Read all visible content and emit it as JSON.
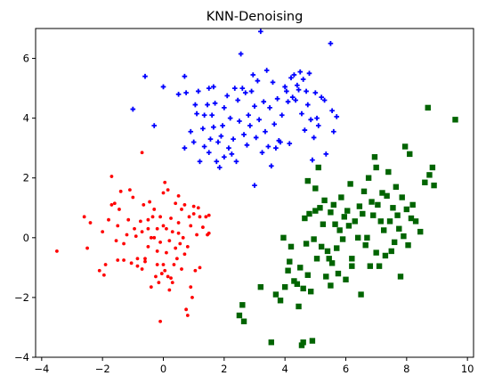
{
  "chart_data": {
    "type": "scatter",
    "title": "KNN-Denoising",
    "xlabel": "",
    "ylabel": "",
    "xlim": [
      -4.2,
      10.2
    ],
    "ylim": [
      -4,
      7
    ],
    "xticks": [
      -4,
      -2,
      0,
      2,
      4,
      6,
      8,
      10
    ],
    "yticks": [
      -4,
      -2,
      0,
      2,
      4,
      6
    ],
    "grid": false,
    "legend": "none",
    "series": [
      {
        "marker": "dot",
        "color": "#ff0000",
        "points": [
          [
            -3.5,
            -0.45
          ],
          [
            -2.6,
            0.7
          ],
          [
            -2.5,
            -0.35
          ],
          [
            -2.4,
            0.5
          ],
          [
            -2.1,
            -1.1
          ],
          [
            -2.0,
            0.2
          ],
          [
            -1.95,
            -1.25
          ],
          [
            -1.9,
            -0.9
          ],
          [
            -1.8,
            0.6
          ],
          [
            -1.7,
            2.05
          ],
          [
            -1.7,
            1.1
          ],
          [
            -1.6,
            1.15
          ],
          [
            -1.55,
            -0.1
          ],
          [
            -1.5,
            0.4
          ],
          [
            -1.5,
            -0.75
          ],
          [
            -1.45,
            0.95
          ],
          [
            -1.4,
            1.55
          ],
          [
            -1.3,
            -0.75
          ],
          [
            -1.3,
            -0.2
          ],
          [
            -1.2,
            0.1
          ],
          [
            -1.15,
            0.6
          ],
          [
            -1.1,
            1.6
          ],
          [
            -1.05,
            -0.85
          ],
          [
            -1.0,
            1.35
          ],
          [
            -0.95,
            0.3
          ],
          [
            -0.9,
            0.05
          ],
          [
            -0.85,
            -0.7
          ],
          [
            -0.85,
            -0.95
          ],
          [
            -0.75,
            0.55
          ],
          [
            -0.7,
            0.2
          ],
          [
            -0.7,
            -1.05
          ],
          [
            -0.65,
            1.1
          ],
          [
            -0.6,
            -0.8
          ],
          [
            -0.6,
            -0.7
          ],
          [
            -0.5,
            0.3
          ],
          [
            -0.5,
            -0.3
          ],
          [
            -0.45,
            1.2
          ],
          [
            -0.4,
            -1.65
          ],
          [
            -0.4,
            0.0
          ],
          [
            -0.35,
            0.7
          ],
          [
            -0.3,
            0.95
          ],
          [
            -0.3,
            0.0
          ],
          [
            -0.25,
            -1.3
          ],
          [
            -0.2,
            0.3
          ],
          [
            -0.2,
            -0.45
          ],
          [
            -0.2,
            -0.9
          ],
          [
            -0.15,
            -1.5
          ],
          [
            -0.1,
            0.7
          ],
          [
            -0.1,
            -0.15
          ],
          [
            -0.1,
            -2.8
          ],
          [
            -0.05,
            -1.2
          ],
          [
            0.0,
            0.4
          ],
          [
            0.0,
            -0.9
          ],
          [
            0.05,
            1.85
          ],
          [
            0.05,
            -1.1
          ],
          [
            0.1,
            0.3
          ],
          [
            0.1,
            -0.5
          ],
          [
            0.15,
            1.6
          ],
          [
            0.15,
            -1.3
          ],
          [
            0.2,
            -0.1
          ],
          [
            0.2,
            -1.75
          ],
          [
            0.25,
            0.65
          ],
          [
            0.25,
            -1.35
          ],
          [
            0.3,
            0.2
          ],
          [
            0.3,
            -1.5
          ],
          [
            0.35,
            -0.9
          ],
          [
            0.4,
            1.15
          ],
          [
            0.4,
            -0.35
          ],
          [
            0.45,
            -0.7
          ],
          [
            0.5,
            0.5
          ],
          [
            0.5,
            1.4
          ],
          [
            0.5,
            0.15
          ],
          [
            0.55,
            -0.2
          ],
          [
            0.6,
            0.95
          ],
          [
            0.6,
            -1.05
          ],
          [
            0.65,
            0.0
          ],
          [
            0.7,
            1.1
          ],
          [
            0.7,
            -0.55
          ],
          [
            0.75,
            -2.4
          ],
          [
            0.8,
            -0.3
          ],
          [
            0.8,
            -2.6
          ],
          [
            0.85,
            0.7
          ],
          [
            0.9,
            0.4
          ],
          [
            0.9,
            -1.65
          ],
          [
            0.95,
            -2.0
          ],
          [
            1.0,
            0.8
          ],
          [
            1.0,
            1.05
          ],
          [
            1.05,
            -1.1
          ],
          [
            1.1,
            0.1
          ],
          [
            1.15,
            1.0
          ],
          [
            1.2,
            0.7
          ],
          [
            1.2,
            -1.0
          ],
          [
            1.3,
            0.35
          ],
          [
            1.4,
            0.7
          ],
          [
            1.45,
            0.1
          ],
          [
            1.5,
            0.15
          ],
          [
            1.5,
            0.75
          ],
          [
            -0.7,
            2.85
          ],
          [
            -0.5,
            0.6
          ],
          [
            0.0,
            1.5
          ]
        ]
      },
      {
        "marker": "plus",
        "color": "#0000ff",
        "points": [
          [
            -1.0,
            4.3
          ],
          [
            -0.6,
            5.4
          ],
          [
            -0.3,
            3.75
          ],
          [
            0.0,
            5.05
          ],
          [
            0.5,
            4.8
          ],
          [
            0.7,
            5.4
          ],
          [
            0.7,
            3.0
          ],
          [
            0.75,
            4.85
          ],
          [
            0.9,
            3.55
          ],
          [
            1.0,
            3.2
          ],
          [
            1.05,
            4.45
          ],
          [
            1.1,
            4.15
          ],
          [
            1.15,
            4.9
          ],
          [
            1.2,
            2.55
          ],
          [
            1.3,
            3.65
          ],
          [
            1.35,
            3.05
          ],
          [
            1.35,
            4.1
          ],
          [
            1.45,
            4.45
          ],
          [
            1.5,
            2.85
          ],
          [
            1.5,
            5.0
          ],
          [
            1.55,
            3.3
          ],
          [
            1.6,
            4.1
          ],
          [
            1.65,
            3.7
          ],
          [
            1.65,
            5.05
          ],
          [
            1.7,
            4.5
          ],
          [
            1.75,
            2.55
          ],
          [
            1.8,
            3.2
          ],
          [
            1.85,
            2.35
          ],
          [
            1.9,
            3.4
          ],
          [
            1.95,
            3.75
          ],
          [
            2.0,
            4.35
          ],
          [
            2.0,
            2.7
          ],
          [
            2.1,
            4.75
          ],
          [
            2.15,
            3.0
          ],
          [
            2.2,
            4.0
          ],
          [
            2.25,
            2.8
          ],
          [
            2.3,
            3.3
          ],
          [
            2.35,
            5.0
          ],
          [
            2.4,
            2.55
          ],
          [
            2.45,
            4.6
          ],
          [
            2.5,
            3.9
          ],
          [
            2.55,
            6.15
          ],
          [
            2.6,
            5.0
          ],
          [
            2.65,
            3.45
          ],
          [
            2.7,
            4.85
          ],
          [
            2.75,
            3.1
          ],
          [
            2.8,
            4.1
          ],
          [
            2.85,
            3.75
          ],
          [
            2.9,
            4.9
          ],
          [
            2.95,
            5.45
          ],
          [
            3.0,
            1.75
          ],
          [
            3.0,
            4.4
          ],
          [
            3.05,
            3.35
          ],
          [
            3.1,
            5.25
          ],
          [
            3.15,
            3.95
          ],
          [
            3.2,
            6.9
          ],
          [
            3.25,
            2.85
          ],
          [
            3.3,
            4.55
          ],
          [
            3.35,
            3.55
          ],
          [
            3.4,
            5.6
          ],
          [
            3.45,
            3.05
          ],
          [
            3.5,
            4.35
          ],
          [
            3.55,
            2.4
          ],
          [
            3.6,
            5.2
          ],
          [
            3.65,
            3.8
          ],
          [
            3.7,
            3.0
          ],
          [
            3.75,
            4.65
          ],
          [
            3.8,
            3.25
          ],
          [
            3.85,
            3.2
          ],
          [
            3.9,
            4.1
          ],
          [
            4.0,
            5.05
          ],
          [
            4.05,
            4.9
          ],
          [
            4.1,
            4.55
          ],
          [
            4.15,
            3.15
          ],
          [
            4.2,
            5.35
          ],
          [
            4.25,
            4.7
          ],
          [
            4.3,
            5.45
          ],
          [
            4.35,
            4.6
          ],
          [
            4.4,
            5.1
          ],
          [
            4.45,
            4.95
          ],
          [
            4.5,
            5.55
          ],
          [
            4.55,
            4.15
          ],
          [
            4.6,
            5.3
          ],
          [
            4.65,
            3.6
          ],
          [
            4.7,
            4.9
          ],
          [
            4.75,
            4.45
          ],
          [
            4.8,
            5.5
          ],
          [
            4.85,
            3.95
          ],
          [
            4.9,
            2.6
          ],
          [
            4.95,
            3.35
          ],
          [
            5.0,
            4.85
          ],
          [
            5.05,
            4.0
          ],
          [
            5.1,
            3.75
          ],
          [
            5.2,
            4.7
          ],
          [
            5.3,
            4.6
          ],
          [
            5.35,
            2.8
          ],
          [
            5.5,
            6.5
          ],
          [
            5.55,
            4.25
          ],
          [
            5.6,
            3.55
          ],
          [
            5.7,
            4.05
          ]
        ]
      },
      {
        "marker": "square",
        "color": "#006400",
        "points": [
          [
            2.5,
            -2.6
          ],
          [
            2.6,
            -2.25
          ],
          [
            2.65,
            -2.8
          ],
          [
            3.2,
            -1.65
          ],
          [
            3.55,
            -3.5
          ],
          [
            3.7,
            -1.9
          ],
          [
            3.85,
            -2.1
          ],
          [
            3.95,
            0.0
          ],
          [
            4.0,
            -1.65
          ],
          [
            4.1,
            -1.1
          ],
          [
            4.15,
            -0.8
          ],
          [
            4.2,
            -0.3
          ],
          [
            4.3,
            -1.45
          ],
          [
            4.4,
            -1.55
          ],
          [
            4.45,
            -2.3
          ],
          [
            4.5,
            -1.0
          ],
          [
            4.55,
            -3.6
          ],
          [
            4.6,
            -1.7
          ],
          [
            4.6,
            -3.5
          ],
          [
            4.65,
            0.65
          ],
          [
            4.7,
            -0.2
          ],
          [
            4.75,
            1.9
          ],
          [
            4.75,
            -1.25
          ],
          [
            4.8,
            0.8
          ],
          [
            4.85,
            -1.8
          ],
          [
            4.9,
            -3.45
          ],
          [
            4.95,
            -0.05
          ],
          [
            5.0,
            0.9
          ],
          [
            5.0,
            1.65
          ],
          [
            5.05,
            -0.7
          ],
          [
            5.1,
            2.35
          ],
          [
            5.15,
            1.0
          ],
          [
            5.2,
            -0.3
          ],
          [
            5.25,
            0.45
          ],
          [
            5.3,
            1.25
          ],
          [
            5.35,
            -1.3
          ],
          [
            5.4,
            -0.45
          ],
          [
            5.45,
            -0.7
          ],
          [
            5.5,
            0.85
          ],
          [
            5.5,
            -1.6
          ],
          [
            5.55,
            -0.85
          ],
          [
            5.6,
            1.1
          ],
          [
            5.65,
            0.45
          ],
          [
            5.7,
            -0.35
          ],
          [
            5.75,
            -1.2
          ],
          [
            5.8,
            0.25
          ],
          [
            5.85,
            1.35
          ],
          [
            5.9,
            -0.05
          ],
          [
            5.95,
            0.7
          ],
          [
            6.0,
            -1.4
          ],
          [
            6.05,
            0.9
          ],
          [
            6.1,
            0.4
          ],
          [
            6.15,
            1.8
          ],
          [
            6.2,
            -0.7
          ],
          [
            6.3,
            0.55
          ],
          [
            6.4,
            0.0
          ],
          [
            6.45,
            1.05
          ],
          [
            6.5,
            -1.9
          ],
          [
            6.55,
            0.8
          ],
          [
            6.6,
            1.55
          ],
          [
            6.65,
            -0.25
          ],
          [
            6.7,
            0.0
          ],
          [
            6.75,
            2.0
          ],
          [
            6.8,
            -0.95
          ],
          [
            6.85,
            1.2
          ],
          [
            6.9,
            0.75
          ],
          [
            6.95,
            2.7
          ],
          [
            7.0,
            -0.5
          ],
          [
            7.05,
            1.1
          ],
          [
            7.1,
            -0.95
          ],
          [
            7.15,
            0.55
          ],
          [
            7.2,
            1.5
          ],
          [
            7.25,
            0.25
          ],
          [
            7.3,
            -0.6
          ],
          [
            7.35,
            1.4
          ],
          [
            7.4,
            2.2
          ],
          [
            7.45,
            0.55
          ],
          [
            7.5,
            -0.45
          ],
          [
            7.55,
            1.0
          ],
          [
            7.6,
            -0.15
          ],
          [
            7.65,
            1.7
          ],
          [
            7.7,
            0.75
          ],
          [
            7.75,
            0.3
          ],
          [
            7.8,
            -1.3
          ],
          [
            7.85,
            1.35
          ],
          [
            7.9,
            0.05
          ],
          [
            7.95,
            3.05
          ],
          [
            8.0,
            0.95
          ],
          [
            8.05,
            -0.25
          ],
          [
            8.1,
            2.8
          ],
          [
            8.15,
            0.65
          ],
          [
            8.2,
            1.1
          ],
          [
            8.3,
            0.55
          ],
          [
            8.45,
            0.2
          ],
          [
            8.6,
            1.85
          ],
          [
            8.7,
            4.35
          ],
          [
            8.75,
            2.1
          ],
          [
            8.85,
            2.35
          ],
          [
            8.9,
            1.75
          ],
          [
            9.6,
            3.95
          ],
          [
            7.0,
            2.35
          ],
          [
            6.2,
            -0.95
          ]
        ]
      }
    ]
  }
}
